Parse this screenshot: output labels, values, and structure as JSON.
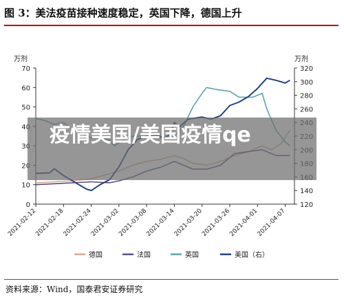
{
  "header": {
    "title": "图 3：美法疫苗接种速度稳定，英国下降，德国上升"
  },
  "overlay": {
    "text": "疫情美国/美国疫情qe"
  },
  "footer": {
    "source": "资料来源：Wind，国泰君安证券研究"
  },
  "colors": {
    "germany": "#d9a88c",
    "france": "#5b4a86",
    "uk": "#5ba3b0",
    "usa": "#1f3f86",
    "title_rule": "#c00000"
  },
  "chart_data": {
    "type": "line",
    "title": "",
    "y_unit_left": "万剂",
    "y_unit_right": "万剂",
    "ylim_left": [
      0,
      70
    ],
    "yticks_left": [
      0,
      10,
      20,
      30,
      40,
      50,
      60,
      70
    ],
    "ylim_right": [
      120,
      320
    ],
    "yticks_right": [
      120,
      140,
      160,
      180,
      200,
      220,
      240,
      260,
      280,
      300,
      320
    ],
    "x_ticks": [
      "2021-02-12",
      "2021-02-18",
      "2021-02-24",
      "2021-03-02",
      "2021-03-08",
      "2021-03-14",
      "2021-03-20",
      "2021-03-26",
      "2021-04-01",
      "2021-04-07"
    ],
    "x_range": [
      "2021-02-12",
      "2021-04-09"
    ],
    "grid": false,
    "legend_position": "bottom",
    "x_start_date": "2021-02-12",
    "series": [
      {
        "name": "德国",
        "axis": "left",
        "color": "#d9a88c",
        "points": [
          [
            "2021-02-12",
            11
          ],
          [
            "2021-02-16",
            11.5
          ],
          [
            "2021-02-20",
            12
          ],
          [
            "2021-02-24",
            13
          ],
          [
            "2021-02-27",
            15
          ],
          [
            "2021-03-02",
            17
          ],
          [
            "2021-03-05",
            20
          ],
          [
            "2021-03-08",
            22
          ],
          [
            "2021-03-11",
            23
          ],
          [
            "2021-03-14",
            25
          ],
          [
            "2021-03-16",
            23.5
          ],
          [
            "2021-03-18",
            21
          ],
          [
            "2021-03-21",
            20
          ],
          [
            "2021-03-24",
            22
          ],
          [
            "2021-03-27",
            25
          ],
          [
            "2021-03-30",
            27
          ],
          [
            "2021-04-02",
            30
          ],
          [
            "2021-04-04",
            28
          ],
          [
            "2021-04-06",
            31
          ],
          [
            "2021-04-08",
            38
          ]
        ]
      },
      {
        "name": "法国",
        "axis": "left",
        "color": "#5b4a86",
        "points": [
          [
            "2021-02-12",
            10
          ],
          [
            "2021-02-16",
            10.5
          ],
          [
            "2021-02-20",
            11
          ],
          [
            "2021-02-24",
            11.5
          ],
          [
            "2021-02-28",
            11
          ],
          [
            "2021-03-02",
            12
          ],
          [
            "2021-03-05",
            14
          ],
          [
            "2021-03-08",
            17
          ],
          [
            "2021-03-11",
            19
          ],
          [
            "2021-03-14",
            22
          ],
          [
            "2021-03-16",
            20
          ],
          [
            "2021-03-18",
            18
          ],
          [
            "2021-03-21",
            18
          ],
          [
            "2021-03-24",
            20
          ],
          [
            "2021-03-27",
            26
          ],
          [
            "2021-03-30",
            27
          ],
          [
            "2021-04-02",
            28
          ],
          [
            "2021-04-05",
            25
          ],
          [
            "2021-04-08",
            25
          ]
        ]
      },
      {
        "name": "英国",
        "axis": "left",
        "color": "#5ba3b0",
        "points": [
          [
            "2021-02-12",
            44
          ],
          [
            "2021-02-14",
            43
          ],
          [
            "2021-02-16",
            41
          ],
          [
            "2021-02-18",
            42
          ],
          [
            "2021-02-20",
            38
          ],
          [
            "2021-02-22",
            36
          ],
          [
            "2021-02-24",
            34
          ],
          [
            "2021-02-26",
            34
          ],
          [
            "2021-02-28",
            33
          ],
          [
            "2021-03-01",
            30
          ],
          [
            "2021-03-03",
            33
          ],
          [
            "2021-03-05",
            35
          ],
          [
            "2021-03-08",
            35
          ],
          [
            "2021-03-11",
            34
          ],
          [
            "2021-03-14",
            35
          ],
          [
            "2021-03-16",
            40
          ],
          [
            "2021-03-18",
            50
          ],
          [
            "2021-03-20",
            57
          ],
          [
            "2021-03-21",
            60
          ],
          [
            "2021-03-23",
            59
          ],
          [
            "2021-03-26",
            58
          ],
          [
            "2021-03-28",
            55
          ],
          [
            "2021-03-31",
            55
          ],
          [
            "2021-04-02",
            57
          ],
          [
            "2021-04-03",
            49
          ],
          [
            "2021-04-05",
            38
          ],
          [
            "2021-04-07",
            32
          ],
          [
            "2021-04-08",
            30
          ]
        ]
      },
      {
        "name": "美国（右）",
        "axis": "right",
        "color": "#1f3f86",
        "points": [
          [
            "2021-02-12",
            165
          ],
          [
            "2021-02-15",
            166
          ],
          [
            "2021-02-16",
            172
          ],
          [
            "2021-02-18",
            162
          ],
          [
            "2021-02-21",
            150
          ],
          [
            "2021-02-23",
            142
          ],
          [
            "2021-02-24",
            140
          ],
          [
            "2021-02-26",
            149
          ],
          [
            "2021-02-28",
            156
          ],
          [
            "2021-03-02",
            175
          ],
          [
            "2021-03-04",
            200
          ],
          [
            "2021-03-06",
            215
          ],
          [
            "2021-03-08",
            220
          ],
          [
            "2021-03-10",
            221
          ],
          [
            "2021-03-12",
            218
          ],
          [
            "2021-03-13",
            222
          ],
          [
            "2021-03-14",
            240
          ],
          [
            "2021-03-15",
            233
          ],
          [
            "2021-03-17",
            245
          ],
          [
            "2021-03-20",
            248
          ],
          [
            "2021-03-22",
            245
          ],
          [
            "2021-03-24",
            250
          ],
          [
            "2021-03-26",
            265
          ],
          [
            "2021-03-28",
            270
          ],
          [
            "2021-03-30",
            278
          ],
          [
            "2021-04-01",
            290
          ],
          [
            "2021-04-03",
            305
          ],
          [
            "2021-04-05",
            302
          ],
          [
            "2021-04-07",
            298
          ],
          [
            "2021-04-08",
            302
          ]
        ]
      }
    ]
  }
}
